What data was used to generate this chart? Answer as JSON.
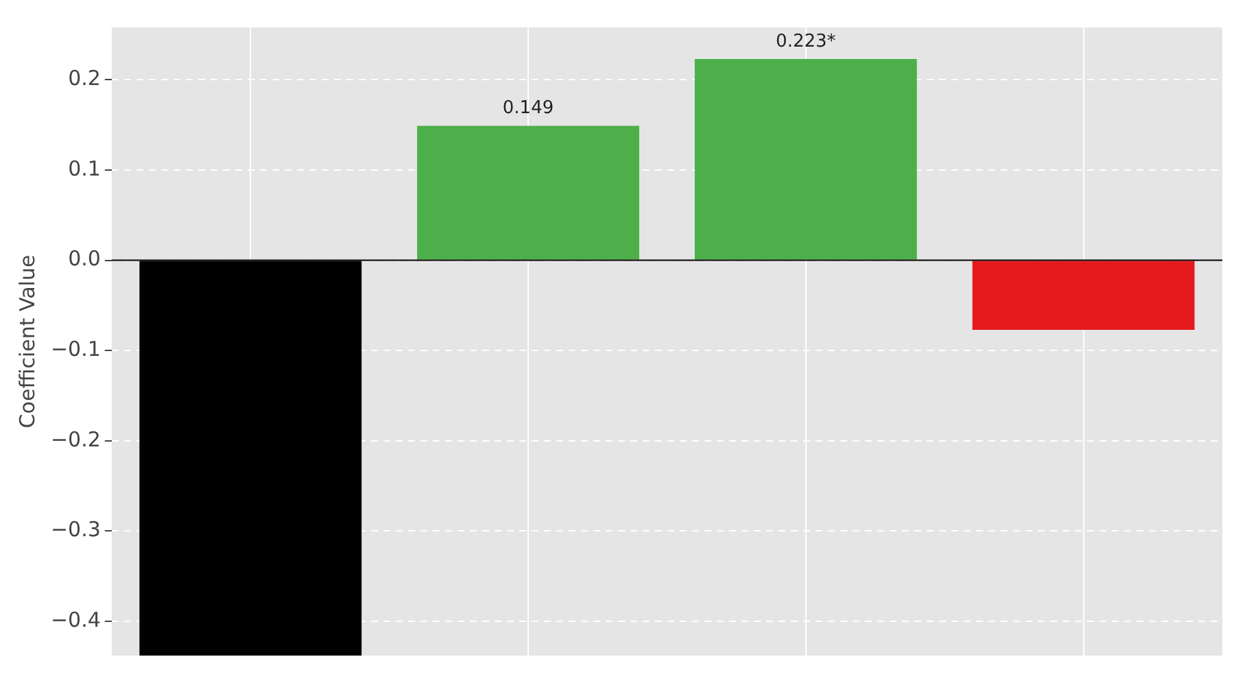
{
  "chart_data": {
    "type": "bar",
    "ylabel": "Coefficient Value",
    "categories": [
      null,
      null,
      null,
      null
    ],
    "values": [
      -0.438,
      0.149,
      0.223,
      -0.077
    ],
    "colors": [
      "#000000",
      "#4daf4a",
      "#4daf4a",
      "#e41a1c"
    ],
    "value_labels": [
      null,
      "0.149",
      "0.223*",
      null
    ],
    "ylim": [
      -0.438,
      0.258
    ],
    "yticks": [
      {
        "value": -0.4,
        "label": "−0.4"
      },
      {
        "value": -0.3,
        "label": "−0.3"
      },
      {
        "value": -0.2,
        "label": "−0.2"
      },
      {
        "value": -0.1,
        "label": "−0.1"
      },
      {
        "value": 0,
        "label": "0.0"
      },
      0.1,
      0.2
    ],
    "grid": true,
    "tick_labels": "y",
    "legend": false
  }
}
